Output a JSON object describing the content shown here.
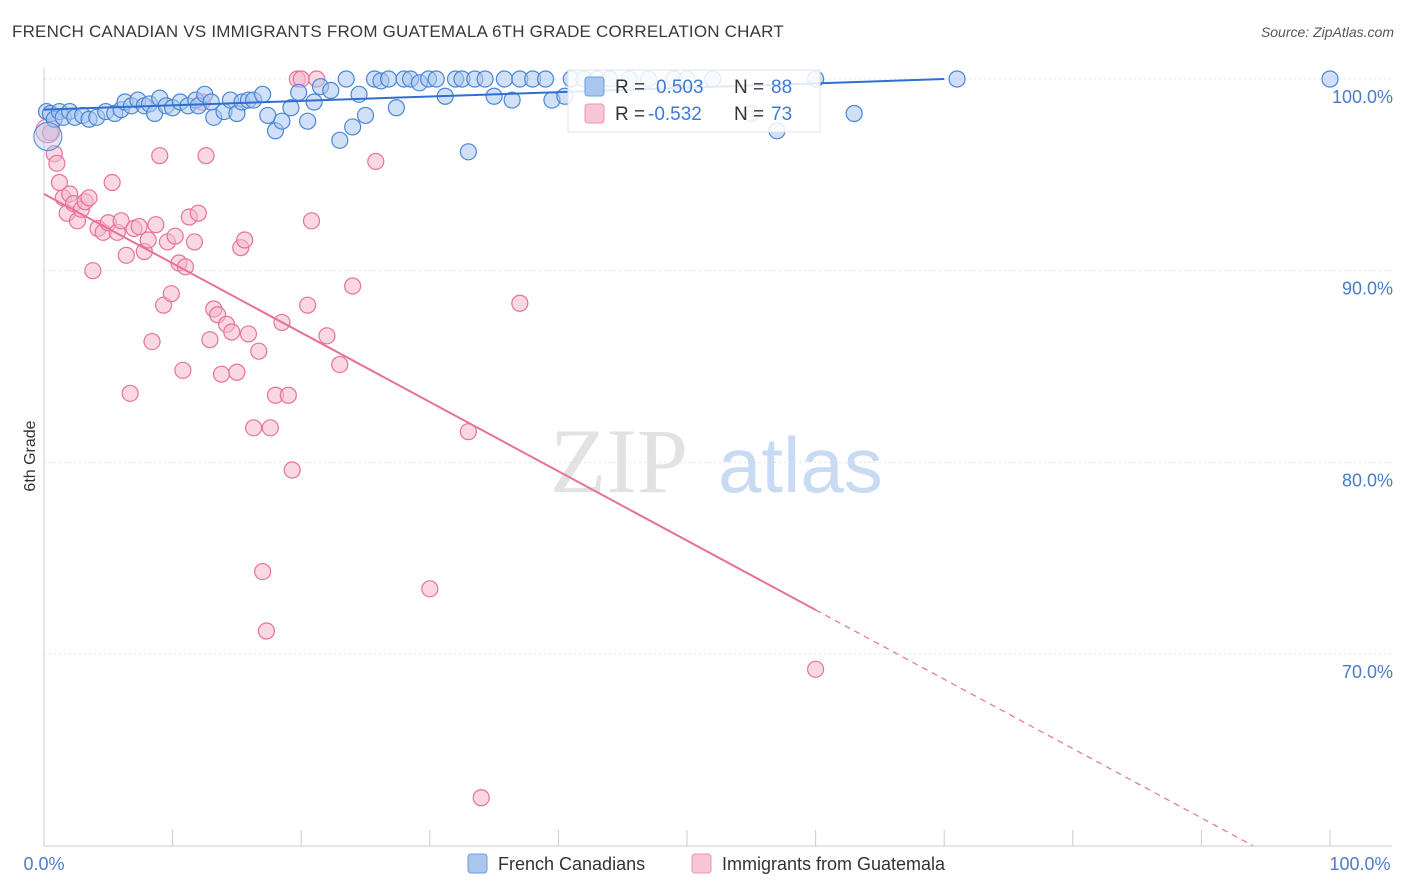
{
  "title": "FRENCH CANADIAN VS IMMIGRANTS FROM GUATEMALA 6TH GRADE CORRELATION CHART",
  "source": "Source: ZipAtlas.com",
  "watermark": {
    "zip": "ZIP",
    "atlas": "atlas"
  },
  "colors": {
    "blue": "#4a86d8",
    "blue_fill": "#a9c6ee",
    "pink": "#e8719a",
    "pink_fill": "#f4b8cc",
    "grid": "#dde3ea",
    "tick_text": "#4a7cc7"
  },
  "chart_data": {
    "type": "scatter",
    "title": "FRENCH CANADIAN VS IMMIGRANTS FROM GUATEMALA 6TH GRADE CORRELATION CHART",
    "xlabel": "",
    "ylabel": "6th Grade",
    "xlim": [
      0,
      100
    ],
    "ylim": [
      60,
      101
    ],
    "x_tick_labels": [
      "0.0%",
      "100.0%"
    ],
    "y_ticks": [
      70,
      80,
      90,
      100
    ],
    "y_tick_labels": [
      "70.0%",
      "80.0%",
      "90.0%",
      "100.0%"
    ],
    "legend": {
      "position": "top-center",
      "entries": [
        {
          "r_label": "R =",
          "r_value": "0.503",
          "n_label": "N =",
          "n_value": "88"
        },
        {
          "r_label": "R =",
          "r_value": "-0.532",
          "n_label": "N =",
          "n_value": "73"
        }
      ]
    },
    "bottom_legend": [
      "French Canadians",
      "Immigrants from Guatemala"
    ],
    "series": [
      {
        "name": "French Canadians",
        "trend": {
          "x0": 0,
          "y0": 98.4,
          "x1": 70,
          "y1": 100.0
        },
        "points": [
          [
            0.2,
            98.3
          ],
          [
            0.5,
            98.2
          ],
          [
            0.8,
            97.9
          ],
          [
            1.2,
            98.3
          ],
          [
            1.5,
            98.0
          ],
          [
            2.0,
            98.3
          ],
          [
            2.4,
            98.0
          ],
          [
            3.0,
            98.1
          ],
          [
            3.5,
            97.9
          ],
          [
            4.1,
            98.0
          ],
          [
            4.8,
            98.3
          ],
          [
            5.5,
            98.2
          ],
          [
            6.0,
            98.4
          ],
          [
            6.3,
            98.8
          ],
          [
            6.8,
            98.6
          ],
          [
            7.3,
            98.9
          ],
          [
            7.8,
            98.6
          ],
          [
            8.2,
            98.7
          ],
          [
            8.6,
            98.2
          ],
          [
            9.0,
            99.0
          ],
          [
            9.5,
            98.6
          ],
          [
            10.0,
            98.5
          ],
          [
            10.6,
            98.8
          ],
          [
            11.2,
            98.6
          ],
          [
            11.8,
            98.9
          ],
          [
            12.0,
            98.6
          ],
          [
            12.5,
            99.2
          ],
          [
            13.0,
            98.8
          ],
          [
            13.2,
            98.0
          ],
          [
            14.0,
            98.3
          ],
          [
            14.5,
            98.9
          ],
          [
            15.0,
            98.2
          ],
          [
            15.4,
            98.8
          ],
          [
            15.9,
            98.9
          ],
          [
            16.3,
            98.9
          ],
          [
            17.0,
            99.2
          ],
          [
            17.4,
            98.1
          ],
          [
            18.0,
            97.3
          ],
          [
            18.5,
            97.8
          ],
          [
            19.2,
            98.5
          ],
          [
            19.8,
            99.3
          ],
          [
            20.5,
            97.8
          ],
          [
            21.0,
            98.8
          ],
          [
            21.5,
            99.6
          ],
          [
            22.3,
            99.4
          ],
          [
            23.0,
            96.8
          ],
          [
            23.5,
            100.0
          ],
          [
            24.0,
            97.5
          ],
          [
            24.5,
            99.2
          ],
          [
            25.0,
            98.1
          ],
          [
            25.7,
            100.0
          ],
          [
            26.2,
            99.9
          ],
          [
            26.8,
            100.0
          ],
          [
            27.4,
            98.5
          ],
          [
            28.0,
            100.0
          ],
          [
            28.5,
            100.0
          ],
          [
            29.2,
            99.8
          ],
          [
            29.9,
            100.0
          ],
          [
            30.5,
            100.0
          ],
          [
            31.2,
            99.1
          ],
          [
            32.0,
            100.0
          ],
          [
            32.5,
            100.0
          ],
          [
            33.0,
            96.2
          ],
          [
            33.5,
            100.0
          ],
          [
            34.3,
            100.0
          ],
          [
            35.0,
            99.1
          ],
          [
            35.8,
            100.0
          ],
          [
            36.4,
            98.9
          ],
          [
            37.0,
            100.0
          ],
          [
            38.0,
            100.0
          ],
          [
            39.0,
            100.0
          ],
          [
            39.5,
            98.9
          ],
          [
            40.5,
            99.1
          ],
          [
            41.0,
            100.0
          ],
          [
            42.0,
            100.0
          ],
          [
            43.0,
            100.0
          ],
          [
            44.0,
            100.0
          ],
          [
            45.5,
            100.0
          ],
          [
            47.0,
            100.0
          ],
          [
            49.0,
            100.0
          ],
          [
            50.0,
            100.0
          ],
          [
            52.0,
            100.0
          ],
          [
            55.0,
            98.2
          ],
          [
            57.0,
            97.3
          ],
          [
            60.0,
            100.0
          ],
          [
            63.0,
            98.2
          ],
          [
            71.0,
            100.0
          ],
          [
            100.0,
            100.0
          ]
        ]
      },
      {
        "name": "Immigrants from Guatemala",
        "trend": {
          "x0": 0,
          "y0": 94.0,
          "x1": 60,
          "y1": 72.3
        },
        "trend_dashed": {
          "x0": 60,
          "y0": 72.3,
          "x1": 94,
          "y1": 60.0
        },
        "points": [
          [
            0.5,
            97.2
          ],
          [
            0.8,
            96.1
          ],
          [
            1.0,
            95.6
          ],
          [
            1.2,
            94.6
          ],
          [
            1.5,
            93.8
          ],
          [
            1.8,
            93.0
          ],
          [
            2.0,
            94.0
          ],
          [
            2.3,
            93.5
          ],
          [
            2.6,
            92.6
          ],
          [
            2.9,
            93.2
          ],
          [
            3.2,
            93.6
          ],
          [
            3.5,
            93.8
          ],
          [
            3.8,
            90.0
          ],
          [
            4.2,
            92.2
          ],
          [
            4.6,
            92.0
          ],
          [
            5.0,
            92.5
          ],
          [
            5.3,
            94.6
          ],
          [
            5.7,
            92.0
          ],
          [
            6.0,
            92.6
          ],
          [
            6.4,
            90.8
          ],
          [
            6.7,
            83.6
          ],
          [
            7.0,
            92.2
          ],
          [
            7.4,
            92.3
          ],
          [
            7.8,
            91.0
          ],
          [
            8.1,
            91.6
          ],
          [
            8.4,
            86.3
          ],
          [
            8.7,
            92.4
          ],
          [
            9.0,
            96.0
          ],
          [
            9.3,
            88.2
          ],
          [
            9.6,
            91.5
          ],
          [
            9.9,
            88.8
          ],
          [
            10.2,
            91.8
          ],
          [
            10.5,
            90.4
          ],
          [
            10.8,
            84.8
          ],
          [
            11.0,
            90.2
          ],
          [
            11.3,
            92.8
          ],
          [
            11.7,
            91.5
          ],
          [
            12.0,
            93.0
          ],
          [
            12.3,
            98.8
          ],
          [
            12.6,
            96.0
          ],
          [
            12.9,
            86.4
          ],
          [
            13.2,
            88.0
          ],
          [
            13.5,
            87.7
          ],
          [
            13.8,
            84.6
          ],
          [
            14.2,
            87.2
          ],
          [
            14.6,
            86.8
          ],
          [
            15.0,
            84.7
          ],
          [
            15.3,
            91.2
          ],
          [
            15.6,
            91.6
          ],
          [
            15.9,
            86.7
          ],
          [
            16.3,
            81.8
          ],
          [
            16.7,
            85.8
          ],
          [
            17.0,
            74.3
          ],
          [
            17.3,
            71.2
          ],
          [
            17.6,
            81.8
          ],
          [
            18.0,
            83.5
          ],
          [
            18.5,
            87.3
          ],
          [
            19.0,
            83.5
          ],
          [
            19.3,
            79.6
          ],
          [
            19.7,
            100.0
          ],
          [
            20.0,
            100.0
          ],
          [
            20.5,
            88.2
          ],
          [
            20.8,
            92.6
          ],
          [
            21.2,
            100.0
          ],
          [
            22.0,
            86.6
          ],
          [
            23.0,
            85.1
          ],
          [
            24.0,
            89.2
          ],
          [
            25.8,
            95.7
          ],
          [
            30.0,
            73.4
          ],
          [
            33.0,
            81.6
          ],
          [
            34.0,
            62.5
          ],
          [
            37.0,
            88.3
          ],
          [
            60.0,
            69.2
          ]
        ]
      }
    ]
  }
}
